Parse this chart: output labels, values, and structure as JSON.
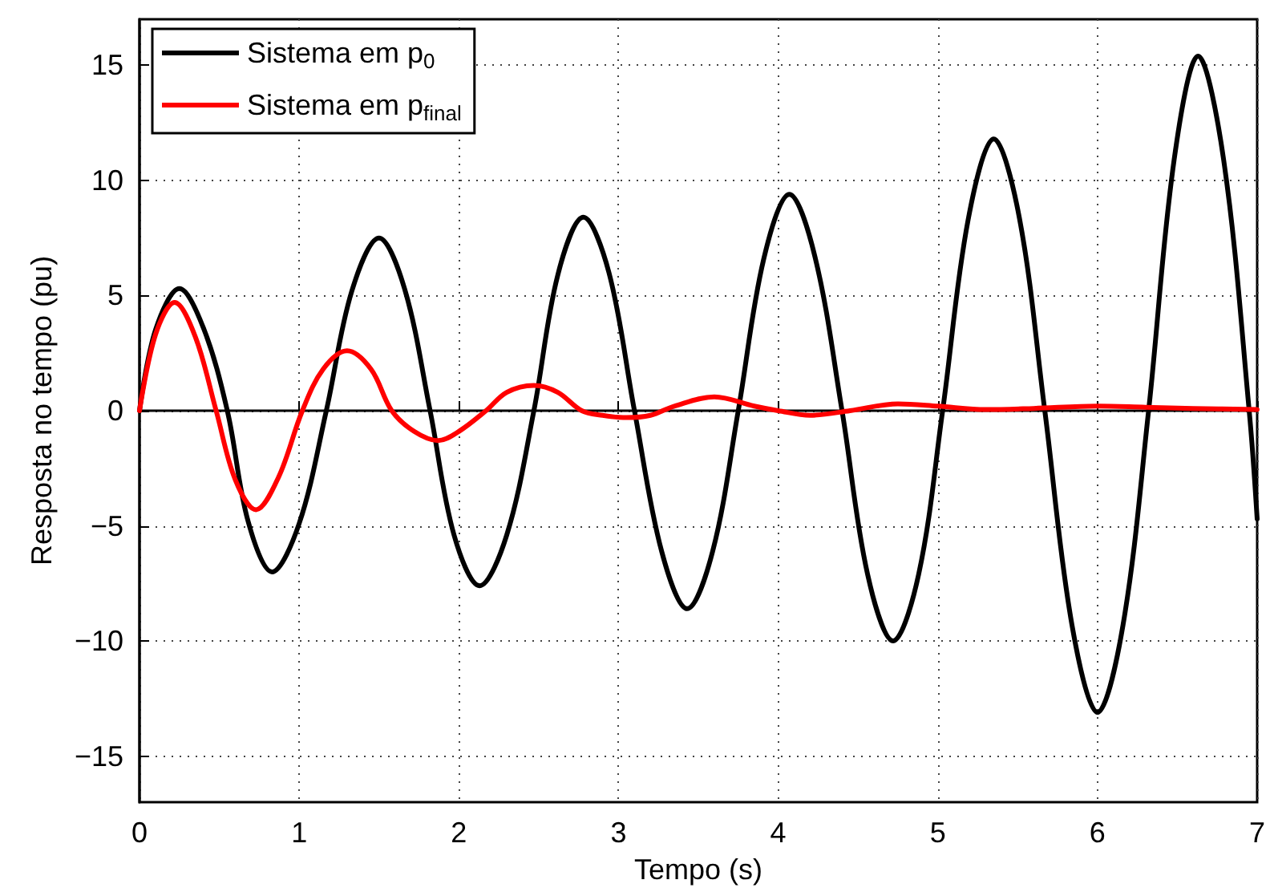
{
  "chart_data": {
    "type": "line",
    "xlabel": "Tempo (s)",
    "ylabel": "Resposta no tempo (pu)",
    "xlim": [
      0,
      7
    ],
    "xticks": [
      0,
      1,
      2,
      3,
      4,
      5,
      6,
      7
    ],
    "ylim": [
      -17,
      17
    ],
    "yticks": [
      -15,
      -10,
      -5,
      0,
      5,
      10,
      15
    ],
    "grid": true,
    "legend": "top left",
    "line_style": "solid",
    "marker": "none",
    "series": [
      {
        "name": "Sistema em p$_{0}$",
        "color": "#000000",
        "x": [
          0,
          0.1,
          0.25,
          0.4,
          0.55,
          0.68,
          0.83,
          1.0,
          1.17,
          1.33,
          1.5,
          1.66,
          1.82,
          1.97,
          2.13,
          2.3,
          2.47,
          2.62,
          2.78,
          2.94,
          3.1,
          3.27,
          3.43,
          3.59,
          3.75,
          3.91,
          4.07,
          4.23,
          4.4,
          4.56,
          4.72,
          4.88,
          5.03,
          5.19,
          5.35,
          5.51,
          5.67,
          5.84,
          6.0,
          6.16,
          6.32,
          6.48,
          6.63,
          6.79,
          6.95,
          7.0
        ],
        "values": [
          0,
          3.5,
          5.3,
          3.6,
          0,
          -4.8,
          -7,
          -4.9,
          0,
          5.2,
          7.5,
          5.3,
          0,
          -5.4,
          -7.6,
          -5.4,
          0,
          5.9,
          8.4,
          6,
          0,
          -6.1,
          -8.6,
          -6.1,
          0,
          6.6,
          9.4,
          6.7,
          0,
          -7.1,
          -10,
          -7.1,
          0,
          8.3,
          11.8,
          8.4,
          0,
          -9.3,
          -13.1,
          -9.3,
          0,
          10.9,
          15.4,
          10.9,
          0,
          -4.7
        ]
      },
      {
        "name": "Sistema em p$_{final}$",
        "color": "#ff0000",
        "x": [
          0,
          0.1,
          0.22,
          0.35,
          0.48,
          0.6,
          0.73,
          0.87,
          1.02,
          1.15,
          1.3,
          1.45,
          1.58,
          1.72,
          1.87,
          2.0,
          2.17,
          2.3,
          2.47,
          2.62,
          2.77,
          2.9,
          3.05,
          3.2,
          3.35,
          3.6,
          3.85,
          4.0,
          4.2,
          4.45,
          4.75,
          5.0,
          5.3,
          5.6,
          6.0,
          6.3,
          6.6,
          7.0
        ],
        "values": [
          0,
          3.3,
          4.7,
          3.2,
          0,
          -3,
          -4.3,
          -2.9,
          0,
          1.8,
          2.6,
          1.8,
          0,
          -0.9,
          -1.3,
          -0.9,
          0,
          0.8,
          1.1,
          0.8,
          0,
          -0.2,
          -0.3,
          -0.2,
          0.2,
          0.6,
          0.2,
          0,
          -0.2,
          0,
          0.3,
          0.2,
          0.05,
          0.1,
          0.2,
          0.15,
          0.1,
          0.05
        ]
      }
    ]
  }
}
